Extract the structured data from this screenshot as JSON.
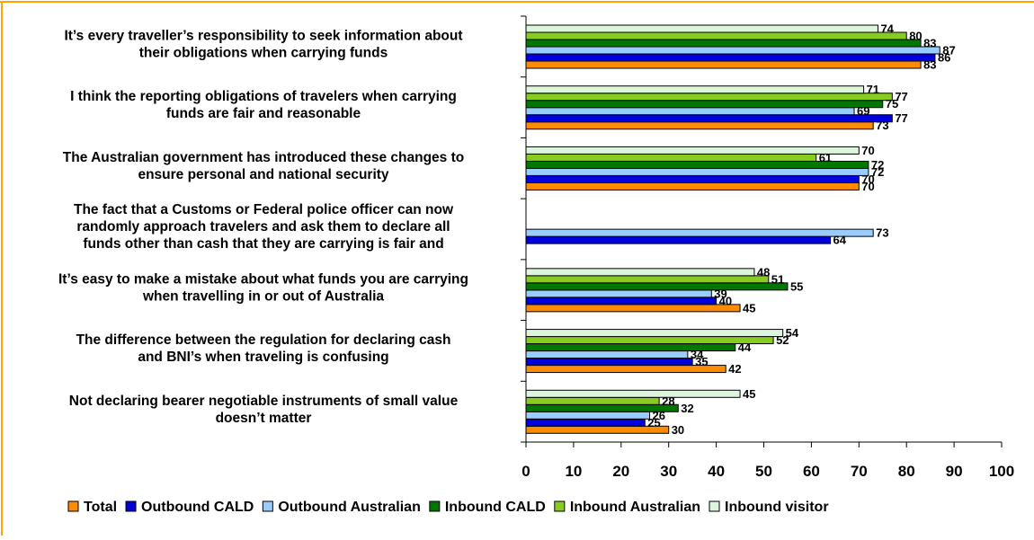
{
  "chart_data": {
    "type": "bar",
    "orientation": "horizontal",
    "categories": [
      [
        "It’s every traveller’s responsibility to seek information about",
        "their obligations when carrying funds"
      ],
      [
        "I think the reporting obligations of travelers when carrying",
        "funds are fair and reasonable"
      ],
      [
        "The Australian government has introduced these changes to",
        "ensure personal and national security"
      ],
      [
        "The fact that a Customs or Federal police officer can now",
        "randomly approach travelers and ask them to declare all",
        "funds other than cash that they are carrying is fair and"
      ],
      [
        "It’s easy to make a mistake about what funds you are carrying",
        "when travelling in or out of Australia"
      ],
      [
        "The difference between the regulation for declaring cash",
        "and BNI’s when traveling is confusing"
      ],
      [
        "Not declaring bearer negotiable instruments of small value",
        "doesn’t matter"
      ]
    ],
    "series": [
      {
        "name": "Total",
        "color": "#FF8C00",
        "values": [
          83,
          73,
          70,
          null,
          45,
          42,
          30
        ]
      },
      {
        "name": "Outbound CALD",
        "color": "#0000DD",
        "values": [
          86,
          77,
          70,
          64,
          40,
          35,
          25
        ]
      },
      {
        "name": "Outbound Australian",
        "color": "#99CCFF",
        "values": [
          87,
          69,
          72,
          73,
          39,
          34,
          26
        ]
      },
      {
        "name": "Inbound CALD",
        "color": "#007700",
        "values": [
          83,
          75,
          72,
          null,
          55,
          44,
          32
        ]
      },
      {
        "name": "Inbound Australian",
        "color": "#88CC22",
        "values": [
          80,
          77,
          61,
          null,
          51,
          52,
          28
        ]
      },
      {
        "name": "Inbound visitor",
        "color": "#DDF5DD",
        "values": [
          74,
          71,
          70,
          null,
          48,
          54,
          45
        ]
      }
    ],
    "xlim": [
      0,
      100
    ],
    "xticks": [
      0,
      10,
      20,
      30,
      40,
      50,
      60,
      70,
      80,
      90,
      100
    ],
    "title": "",
    "xlabel": "",
    "ylabel": "",
    "grid": false,
    "legend": "bottom",
    "frame_color": "#FFA500"
  }
}
